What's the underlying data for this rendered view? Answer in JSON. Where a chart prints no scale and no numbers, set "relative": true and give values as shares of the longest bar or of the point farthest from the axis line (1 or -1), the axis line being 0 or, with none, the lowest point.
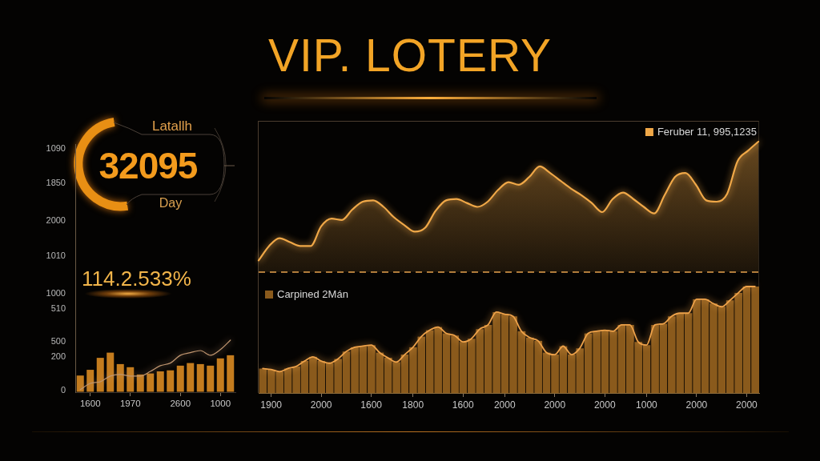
{
  "chart_data": [
    {
      "type": "other",
      "title": "VIP. LOTERY"
    },
    {
      "type": "other",
      "annotations": [
        "Latallh",
        "32095",
        "Day"
      ]
    },
    {
      "type": "bar",
      "relative": true,
      "categories": [
        null,
        "1600",
        null,
        null,
        null,
        "1970",
        null,
        null,
        null,
        null,
        "2600",
        null,
        null,
        null,
        "1000",
        null
      ],
      "series": [
        {
          "color": "#c47c1e",
          "values": [
            0.32,
            0.43,
            0.66,
            0.76,
            0.54,
            0.48,
            0.34,
            0.36,
            0.4,
            0.42,
            0.51,
            0.56,
            0.54,
            0.51,
            0.65,
            0.71
          ]
        },
        {
          "type": "line",
          "color": "#c09670",
          "values": [
            0.05,
            0.17,
            0.2,
            0.31,
            0.34,
            0.31,
            0.31,
            0.4,
            0.51,
            0.56,
            0.71,
            0.76,
            0.8,
            0.71,
            0.82,
            1
          ]
        }
      ],
      "annotations": [
        "1090",
        "1850",
        "2000",
        "1010",
        "114.2.533%",
        "1000",
        "510",
        "500",
        "200",
        "0"
      ]
    },
    {
      "type": "area",
      "relative": true,
      "legend": "top right",
      "categories": [
        null,
        null,
        null,
        null,
        null,
        null,
        null,
        null,
        null,
        null,
        null,
        null,
        null,
        null,
        null,
        null,
        null,
        null,
        null,
        null,
        null,
        null,
        null,
        null,
        null,
        null,
        null,
        null,
        null,
        null,
        null,
        null,
        null,
        null,
        null,
        null,
        null,
        null,
        null,
        null,
        null,
        null,
        null,
        null,
        null,
        null,
        null,
        null,
        null
      ],
      "series": [
        {
          "name": "Feruber 11, 995,1235",
          "color": "#f0a848",
          "values": [
            0.09,
            0.2,
            0.26,
            0.23,
            0.2,
            0.2,
            0.35,
            0.41,
            0.4,
            0.48,
            0.54,
            0.55,
            0.5,
            0.42,
            0.36,
            0.31,
            0.34,
            0.47,
            0.55,
            0.56,
            0.53,
            0.5,
            0.54,
            0.63,
            0.69,
            0.67,
            0.73,
            0.81,
            0.76,
            0.7,
            0.64,
            0.59,
            0.53,
            0.46,
            0.56,
            0.61,
            0.56,
            0.5,
            0.45,
            0.59,
            0.73,
            0.76,
            0.67,
            0.55,
            0.54,
            0.6,
            0.85,
            0.93,
            1
          ]
        }
      ],
      "ref_lines": [
        {
          "axis": "y",
          "value": 0,
          "line_style": "dashed",
          "color": "#e6a24e"
        }
      ]
    },
    {
      "type": "bar",
      "relative": true,
      "legend": "top left",
      "categories": [
        null,
        "1900",
        null,
        null,
        null,
        null,
        null,
        "2000",
        null,
        null,
        null,
        null,
        null,
        "1600",
        null,
        null,
        null,
        null,
        "1800",
        null,
        null,
        null,
        null,
        null,
        "1600",
        null,
        null,
        null,
        null,
        "2000",
        null,
        null,
        null,
        null,
        null,
        "2000",
        null,
        null,
        null,
        null,
        null,
        "2000",
        null,
        null,
        null,
        null,
        "1000",
        null,
        null,
        null,
        null,
        null,
        "2000",
        null,
        null,
        null,
        null,
        null,
        "2000",
        null
      ],
      "series": [
        {
          "name": "Carpined 2Mán",
          "color": "#8a5a1c",
          "values": [
            0.23,
            0.22,
            0.2,
            0.23,
            0.25,
            0.3,
            0.34,
            0.3,
            0.28,
            0.32,
            0.39,
            0.43,
            0.44,
            0.45,
            0.38,
            0.33,
            0.29,
            0.36,
            0.43,
            0.53,
            0.59,
            0.62,
            0.56,
            0.54,
            0.48,
            0.51,
            0.6,
            0.64,
            0.76,
            0.74,
            0.72,
            0.58,
            0.52,
            0.49,
            0.38,
            0.36,
            0.44,
            0.36,
            0.42,
            0.56,
            0.58,
            0.59,
            0.58,
            0.64,
            0.64,
            0.48,
            0.45,
            0.64,
            0.65,
            0.72,
            0.75,
            0.75,
            0.88,
            0.88,
            0.84,
            0.81,
            0.87,
            0.94,
            1,
            1
          ]
        },
        {
          "type": "line",
          "color": "#eea24a",
          "values": [
            0.23,
            0.22,
            0.2,
            0.23,
            0.25,
            0.3,
            0.34,
            0.3,
            0.28,
            0.32,
            0.39,
            0.43,
            0.44,
            0.45,
            0.38,
            0.33,
            0.29,
            0.36,
            0.43,
            0.53,
            0.59,
            0.62,
            0.56,
            0.54,
            0.48,
            0.51,
            0.6,
            0.64,
            0.76,
            0.74,
            0.72,
            0.58,
            0.52,
            0.49,
            0.38,
            0.36,
            0.44,
            0.36,
            0.42,
            0.56,
            0.58,
            0.59,
            0.58,
            0.64,
            0.64,
            0.48,
            0.45,
            0.64,
            0.65,
            0.72,
            0.75,
            0.75,
            0.88,
            0.88,
            0.84,
            0.81,
            0.87,
            0.94,
            1,
            1
          ]
        }
      ]
    }
  ]
}
